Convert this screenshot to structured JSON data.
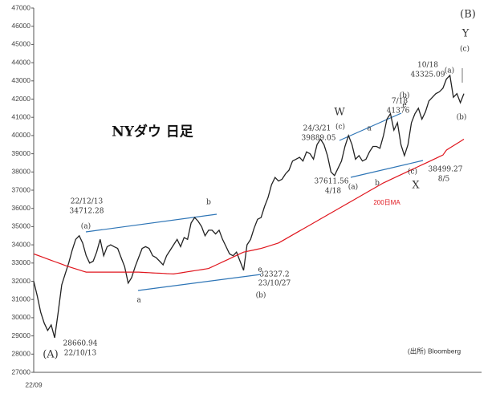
{
  "chart_data": {
    "type": "line",
    "title": "NYダウ 日足",
    "source": "(出所) Bloomberg",
    "categories": [
      "22/09",
      null,
      null,
      null,
      null,
      null,
      null,
      null,
      null,
      null,
      null,
      null,
      null,
      null,
      null,
      null,
      null,
      null,
      null,
      null,
      null,
      null,
      null,
      null,
      null,
      null,
      null,
      null,
      null,
      null,
      null,
      null,
      null,
      null,
      null,
      null,
      null,
      null,
      null,
      null,
      null,
      null,
      null,
      null,
      null,
      null,
      null,
      null,
      null,
      null,
      null,
      null,
      null,
      null,
      null,
      null,
      null,
      null,
      null,
      null,
      null,
      null,
      null,
      null,
      null,
      null,
      null,
      null,
      null,
      null,
      null,
      null,
      null,
      null,
      null,
      null,
      null,
      null,
      null,
      null,
      null,
      null,
      null,
      null,
      null,
      null,
      null,
      null,
      null,
      null,
      null,
      null,
      null,
      null,
      null,
      null,
      null,
      null,
      null,
      null,
      null,
      null,
      null,
      null,
      null,
      null,
      null,
      null,
      null,
      null,
      null,
      null,
      null,
      null,
      null,
      null,
      null,
      null,
      null,
      null,
      null,
      null,
      null,
      null
    ],
    "series": [
      {
        "color": "#222222",
        "values": [
          32000,
          31200,
          30300,
          29700,
          29300,
          29600,
          28900,
          30300,
          31800,
          32400,
          33000,
          33700,
          34300,
          34500,
          34100,
          33400,
          33000,
          33100,
          33600,
          34300,
          33400,
          33900,
          34000,
          33900,
          33800,
          33300,
          32800,
          31900,
          32200,
          32800,
          33300,
          33800,
          33900,
          33800,
          33400,
          33300,
          33100,
          32900,
          33400,
          33700,
          34000,
          34300,
          33900,
          34400,
          34300,
          35200,
          35500,
          35300,
          35000,
          34500,
          34800,
          34800,
          34600,
          34800,
          34300,
          33900,
          33500,
          33400,
          33600,
          33100,
          32600,
          34000,
          34300,
          34900,
          35400,
          35500,
          36100,
          36600,
          37300,
          37700,
          37500,
          37600,
          37900,
          38100,
          38600,
          38700,
          38800,
          38600,
          39100,
          39000,
          38700,
          39500,
          39800,
          39500,
          38900,
          38000,
          37800,
          38200,
          38600,
          39400,
          40000,
          39500,
          38700,
          38900,
          38600,
          38700,
          39100,
          39400,
          39400,
          39300,
          40000,
          40900,
          41200,
          40300,
          40700,
          39500,
          38900,
          39500,
          40700,
          41200,
          41500,
          40900,
          41300,
          41900,
          42100,
          42300,
          42400,
          42600,
          43100,
          43300,
          42100,
          42300,
          41800,
          42300
        ]
      },
      {
        "name": "200日MA",
        "color": "#e0161e",
        "values": [
          33500,
          33430,
          33360,
          33290,
          33220,
          33150,
          33080,
          33010,
          32940,
          32870,
          32800,
          32740,
          32680,
          32620,
          32560,
          32500,
          32500,
          32500,
          32500,
          32500,
          32500,
          32500,
          32500,
          32500,
          32500,
          32500,
          32500,
          32500,
          32500,
          32500,
          32500,
          32490,
          32480,
          32470,
          32460,
          32450,
          32440,
          32430,
          32420,
          32410,
          32400,
          32430,
          32460,
          32490,
          32520,
          32550,
          32580,
          32610,
          32640,
          32670,
          32700,
          32790,
          32880,
          32970,
          33060,
          33150,
          33240,
          33330,
          33420,
          33510,
          33600,
          33640,
          33680,
          33720,
          33760,
          33800,
          33860,
          33920,
          33980,
          34040,
          34100,
          34210,
          34320,
          34430,
          34540,
          34650,
          34760,
          34870,
          34980,
          35090,
          35200,
          35310,
          35420,
          35530,
          35640,
          35750,
          35860,
          35970,
          36080,
          36190,
          36300,
          36410,
          36520,
          36630,
          36740,
          36850,
          36960,
          37070,
          37180,
          37290,
          37400,
          37490,
          37580,
          37670,
          37760,
          37850,
          37940,
          38030,
          38120,
          38210,
          38300,
          38390,
          38480,
          38570,
          38660,
          38750,
          38840,
          38930,
          39200,
          39320,
          39440,
          39560,
          39680,
          39800
        ]
      }
    ],
    "ylim": [
      27000,
      47000
    ],
    "yticks": [
      27000,
      28000,
      29000,
      30000,
      31000,
      32000,
      33000,
      34000,
      35000,
      36000,
      37000,
      38000,
      39000,
      40000,
      41000,
      42000,
      43000,
      44000,
      45000,
      46000,
      47000
    ],
    "annotations": [
      "(B)",
      "Y",
      "(c)",
      "10/18",
      "43325.09",
      "(a)",
      "(b)",
      "7/18",
      "41376",
      "(b)",
      "e",
      "W",
      "(c)",
      "a",
      "24/3/21",
      "39889.05",
      "b",
      "(a)",
      "37611.56",
      "4/18",
      "(c)",
      "38499.27",
      "8/5",
      "X",
      "22/12/13",
      "34712.28",
      "(a)",
      "b",
      "e",
      "32327.2",
      "23/10/27",
      "(b)",
      "a",
      "28660.94",
      "22/10/13",
      "(A)"
    ]
  }
}
